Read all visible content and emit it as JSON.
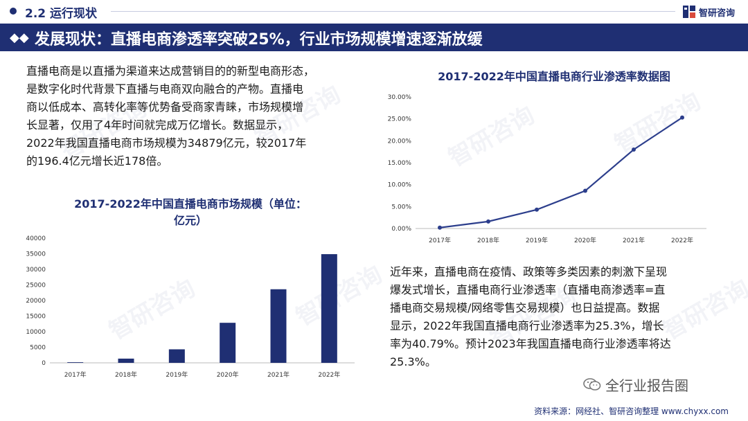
{
  "header": {
    "section_label": "2.2 运行现状",
    "brand_name": "智研咨询",
    "banner_title": "发展现状：直播电商渗透率突破25%，行业市场规模增速逐渐放缓"
  },
  "watermark": {
    "text": "智研咨询"
  },
  "left_paragraph": {
    "lines": [
      "直播电商是以直播为渠道来达成营销目的的新型电商形态，",
      "是数字化时代背景下直播与电商双向融合的产物。直播电",
      "商以低成本、高转化率等优势备受商家青睐，市场规模增",
      "长显著，仅用了4年时间就完成万亿增长。数据显示，",
      "2022年我国直播电商市场规模为34879亿元，较2017年",
      "的196.4亿元增长近178倍。"
    ]
  },
  "right_paragraph": {
    "lines": [
      "近年来，直播电商在疫情、政策等多类因素的刺激下呈现",
      "爆发式增长，直播电商行业渗透率（直播电商渗透率=直",
      "播电商交易规模/网络零售交易规模）也日益提高。数据",
      "显示，2022年我国直播电商行业渗透率为25.3%，增长",
      "率为40.79%。预计2023年我国直播电商行业渗透率将达",
      "25.3%。"
    ]
  },
  "footer": {
    "wechat_account": "全行业报告圈",
    "source": "资料来源：网经社、智研咨询整理  www.chyxx.com"
  },
  "colors": {
    "primary": "#1f2f73",
    "line": "#2c3e8c"
  },
  "chart_data": [
    {
      "type": "bar",
      "title_lines": [
        "2017-2022年中国直播电商市场规模（单位：",
        "亿元）"
      ],
      "categories": [
        "2017年",
        "2018年",
        "2019年",
        "2020年",
        "2021年",
        "2022年"
      ],
      "values": [
        196.4,
        1354,
        4338,
        12850,
        23615,
        34879
      ],
      "ylim": [
        0,
        40000
      ],
      "yticks": [
        0,
        5000,
        10000,
        15000,
        20000,
        25000,
        30000,
        35000,
        40000
      ],
      "grid": false,
      "color": "#1f2f73"
    },
    {
      "type": "line",
      "title": "2017-2022年中国直播电商行业渗透率数据图",
      "categories": [
        "2017年",
        "2018年",
        "2019年",
        "2020年",
        "2021年",
        "2022年"
      ],
      "values": [
        0.2,
        1.6,
        4.3,
        8.6,
        18.0,
        25.3
      ],
      "ylim": [
        0,
        30
      ],
      "yticks": [
        "0.00%",
        "5.00%",
        "10.00%",
        "15.00%",
        "20.00%",
        "25.00%",
        "30.00%"
      ],
      "grid": false,
      "color": "#2c3e8c"
    }
  ]
}
